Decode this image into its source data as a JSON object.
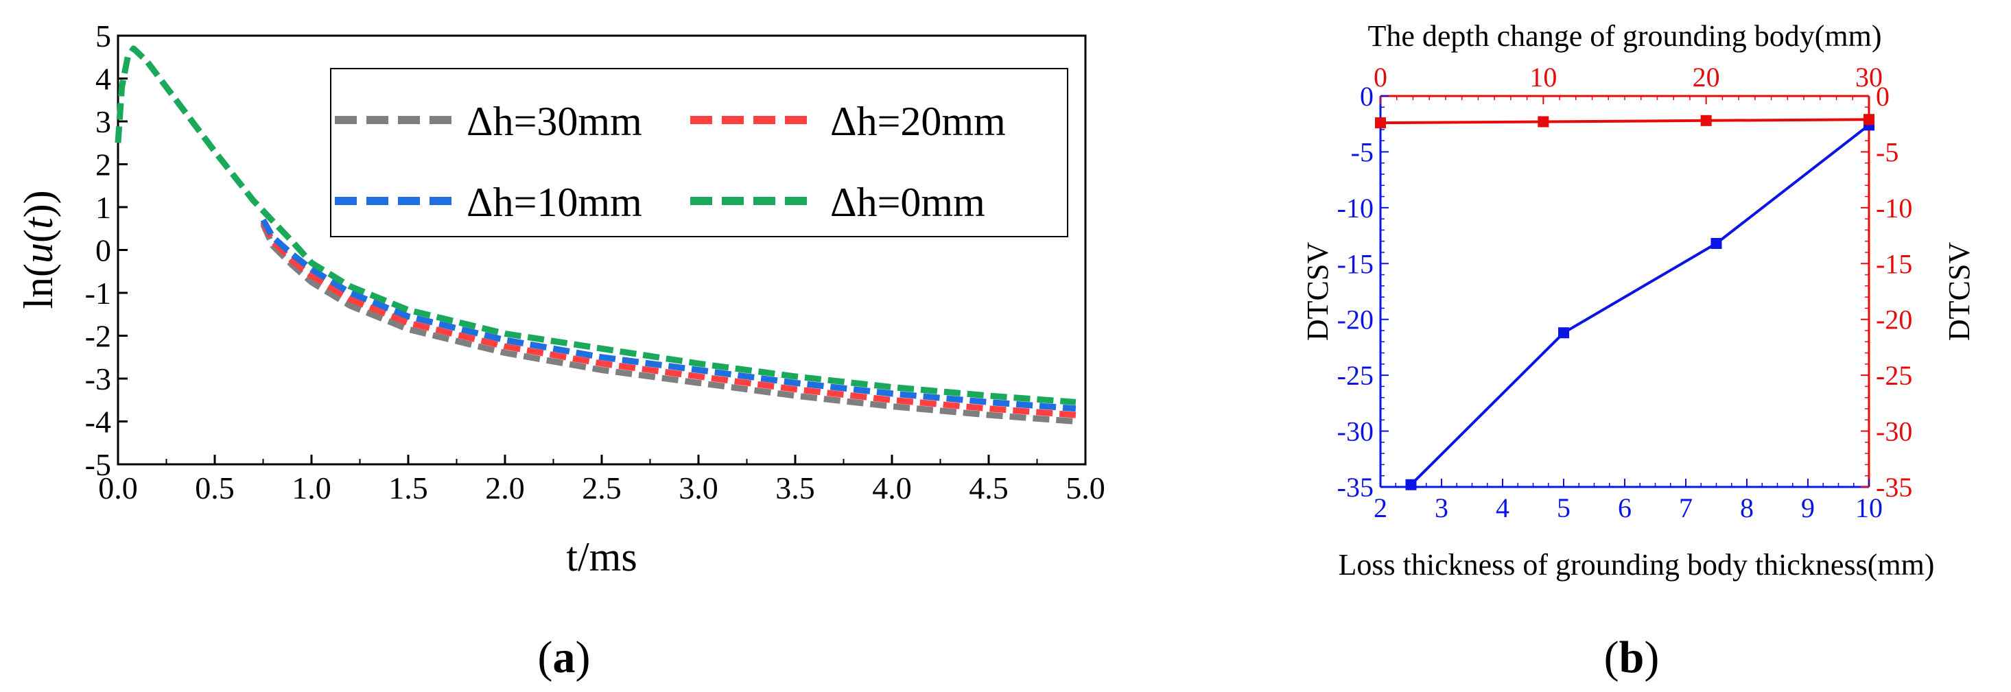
{
  "chart_data": [
    {
      "id": "a",
      "type": "line",
      "panel_label": "a",
      "xlabel": "t/ms",
      "ylabel": "ln(u(t))",
      "xlim": [
        0.0,
        5.0
      ],
      "ylim": [
        -5,
        5
      ],
      "xticks": [
        "0.0",
        "0.5",
        "1.0",
        "1.5",
        "2.0",
        "2.5",
        "3.0",
        "3.5",
        "4.0",
        "4.5",
        "5.0"
      ],
      "yticks": [
        "5",
        "4",
        "3",
        "2",
        "1",
        "0",
        "-1",
        "-2",
        "-3",
        "-4",
        "-5"
      ],
      "legend_position": "top-right",
      "series": [
        {
          "name": "Δh=30mm",
          "color": "#7f7f7f",
          "x": [
            0.75,
            0.8,
            0.9,
            1.0,
            1.2,
            1.5,
            2.0,
            2.5,
            3.0,
            3.5,
            4.0,
            4.5,
            4.95
          ],
          "y": [
            0.6,
            0.1,
            -0.35,
            -0.75,
            -1.3,
            -1.85,
            -2.4,
            -2.8,
            -3.1,
            -3.4,
            -3.65,
            -3.85,
            -4.0
          ]
        },
        {
          "name": "Δh=20mm",
          "color": "#ff4040",
          "x": [
            0.75,
            0.8,
            0.9,
            1.0,
            1.2,
            1.5,
            2.0,
            2.5,
            3.0,
            3.5,
            4.0,
            4.5,
            4.95
          ],
          "y": [
            0.65,
            0.2,
            -0.25,
            -0.6,
            -1.15,
            -1.7,
            -2.25,
            -2.65,
            -2.95,
            -3.25,
            -3.5,
            -3.7,
            -3.85
          ]
        },
        {
          "name": "Δh=10mm",
          "color": "#1f6fe0",
          "x": [
            0.75,
            0.8,
            0.9,
            1.0,
            1.2,
            1.5,
            2.0,
            2.5,
            3.0,
            3.5,
            4.0,
            4.5,
            4.95
          ],
          "y": [
            0.7,
            0.3,
            -0.1,
            -0.45,
            -1.0,
            -1.55,
            -2.1,
            -2.5,
            -2.8,
            -3.1,
            -3.35,
            -3.55,
            -3.7
          ]
        },
        {
          "name": "Δh=0mm",
          "color": "#1aa85a",
          "x": [
            0.0,
            0.02,
            0.05,
            0.08,
            0.15,
            0.3,
            0.5,
            0.7,
            0.9,
            1.0,
            1.2,
            1.5,
            2.0,
            2.5,
            3.0,
            3.5,
            4.0,
            4.5,
            4.95
          ],
          "y": [
            2.5,
            3.8,
            4.5,
            4.7,
            4.4,
            3.5,
            2.3,
            1.15,
            0.2,
            -0.3,
            -0.85,
            -1.4,
            -1.95,
            -2.3,
            -2.65,
            -2.95,
            -3.2,
            -3.4,
            -3.55
          ]
        }
      ]
    },
    {
      "id": "b",
      "type": "line",
      "panel_label": "b",
      "ylabel_left": "DTCSV",
      "ylabel_right": "DTCSV",
      "xlabel_bottom": "Loss thickness of grounding body thickness(mm)",
      "xlabel_top": "The depth change of grounding body(mm)",
      "xlim_bottom": [
        2,
        10
      ],
      "xlim_top": [
        0,
        30
      ],
      "ylim": [
        -35,
        0
      ],
      "xticks_bottom": [
        "2",
        "3",
        "4",
        "5",
        "6",
        "7",
        "8",
        "9",
        "10"
      ],
      "xticks_top": [
        "0",
        "10",
        "20",
        "30"
      ],
      "yticks_left": [
        "0",
        "-5",
        "-10",
        "-15",
        "-20",
        "-25",
        "-30",
        "-35"
      ],
      "yticks_right": [
        "0",
        "-5",
        "-10",
        "-15",
        "-20",
        "-25",
        "-30",
        "-35"
      ],
      "series": [
        {
          "name": "Loss thickness",
          "axis": "bottom",
          "color": "#0a14e6",
          "x": [
            2.5,
            5,
            7.5,
            10
          ],
          "y": [
            -34.8,
            -21.2,
            -13.2,
            -2.6
          ]
        },
        {
          "name": "Depth change",
          "axis": "top",
          "color": "#e60a0a",
          "x": [
            0,
            10,
            20,
            30
          ],
          "y": [
            -2.4,
            -2.3,
            -2.2,
            -2.1
          ]
        }
      ]
    }
  ]
}
